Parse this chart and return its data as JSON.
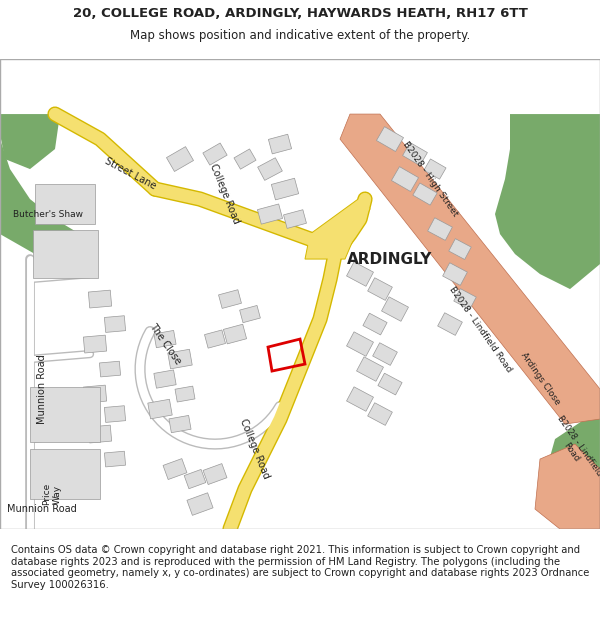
{
  "title_line1": "20, COLLEGE ROAD, ARDINGLY, HAYWARDS HEATH, RH17 6TT",
  "title_line2": "Map shows position and indicative extent of the property.",
  "footer_text": "Contains OS data © Crown copyright and database right 2021. This information is subject to Crown copyright and database rights 2023 and is reproduced with the permission of HM Land Registry. The polygons (including the associated geometry, namely x, y co-ordinates) are subject to Crown copyright and database rights 2023 Ordnance Survey 100026316.",
  "bg": "#ffffff",
  "map_bg": "#f5f3ee",
  "colors": {
    "green": "#78aa6a",
    "road_yellow_fill": "#f5e070",
    "road_yellow_edge": "#d4b800",
    "road_b_fill": "#e8a888",
    "road_b_edge": "#c07050",
    "road_white_fill": "#ffffff",
    "road_white_edge": "#bbbbbb",
    "bld_fill": "#dddddd",
    "bld_edge": "#999999",
    "prop_edge": "#dd0000",
    "text": "#222222",
    "border": "#aaaaaa"
  },
  "title_fs": 9.5,
  "sub_fs": 8.5,
  "foot_fs": 7.2
}
